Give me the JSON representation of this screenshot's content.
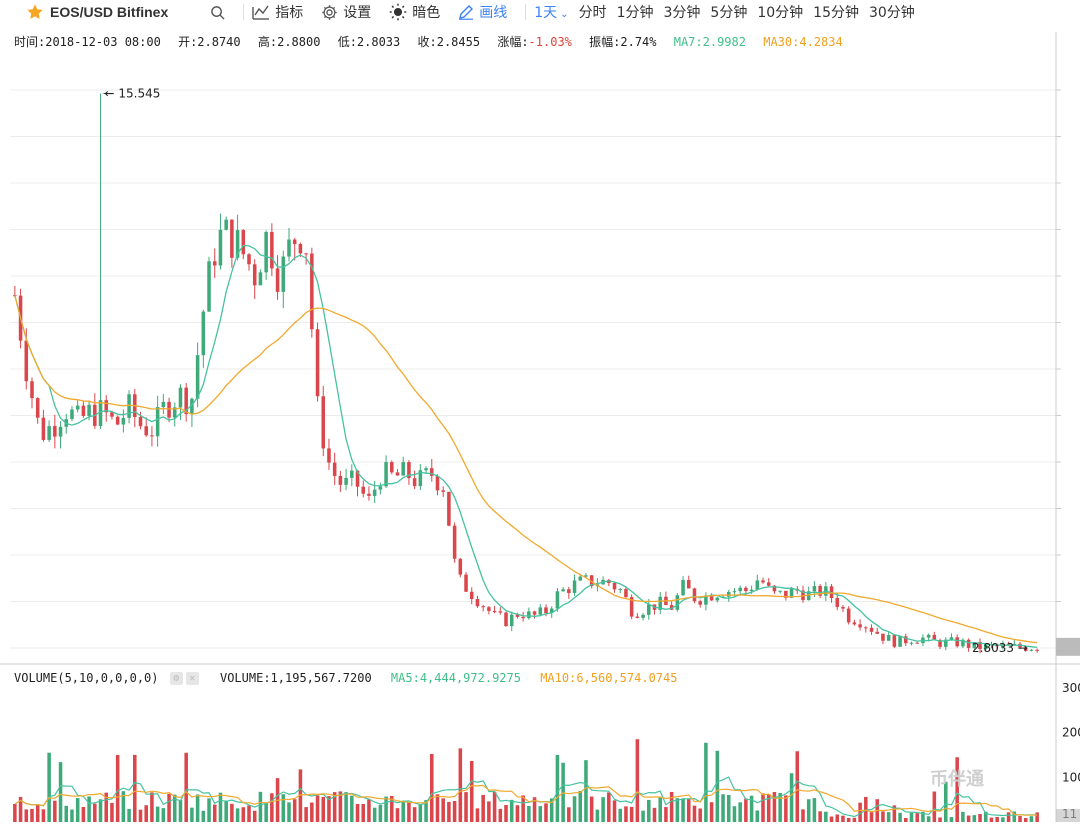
{
  "toolbar": {
    "symbol": "EOS/USD Bitfinex",
    "indicators_label": "指标",
    "settings_label": "设置",
    "dark_label": "暗色",
    "draw_label": "画线",
    "active_period": "1天",
    "periods": [
      "分时",
      "1分钟",
      "3分钟",
      "5分钟",
      "10分钟",
      "15分钟",
      "30分钟"
    ]
  },
  "info": {
    "time": "时间:2018-12-03 08:00",
    "open": "开:2.8740",
    "high": "高:2.8800",
    "low": "低:2.8033",
    "close": "收:2.8455",
    "change_label": "涨幅:",
    "change_value": "-1.03%",
    "amplitude": "振幅:2.74%",
    "ma7": "MA7:2.9982",
    "ma30": "MA30:4.2834"
  },
  "volume_info": {
    "title": "VOLUME(5,10,0,0,0,0)",
    "value": "VOLUME:1,195,567.7200",
    "ma5": "MA5:4,444,972.9275",
    "ma10": "MA10:6,560,574.0745"
  },
  "colors": {
    "up": "#3fa97a",
    "down": "#d9464b",
    "ma_short": "#45c3a0",
    "ma_long": "#f0a92e",
    "grid": "#ececec"
  },
  "watermark": "币伴通",
  "chart_data": {
    "type": "candlestick",
    "price_axis_range": [
      2.5,
      16.5
    ],
    "annotations": {
      "max": "15.545",
      "last": "2.8033"
    },
    "volume_axis_ticks": [
      "300",
      "200",
      "100",
      "11"
    ],
    "ohlc_close_series": [
      10.9,
      9.1,
      7.7,
      7.9,
      8.3,
      8.0,
      8.2,
      8.2,
      7.9,
      8.3,
      7.9,
      7.8,
      8.4,
      8.6,
      8.5,
      10.7,
      12.2,
      12.3,
      11.9,
      11.4,
      12.3,
      11.3,
      12.2,
      12.4,
      8.2,
      6.9,
      6.5,
      6.6,
      6.1,
      6.8,
      6.7,
      6.8,
      6.6,
      6.8,
      6.5,
      4.4,
      4.1,
      3.8,
      3.5,
      3.4,
      3.6,
      3.5,
      3.6,
      4.0,
      4.2,
      4.3,
      4.3,
      4.3,
      4.1,
      3.6,
      3.7,
      3.8,
      3.7,
      4.2,
      3.9,
      4.0,
      4.1,
      4.1,
      4.1,
      4.4,
      4.0,
      4.0,
      4.1,
      4.0,
      4.1,
      3.9,
      3.5,
      3.4,
      3.2,
      3.0,
      2.9,
      3.0,
      3.0,
      2.9,
      2.9,
      2.9,
      2.8,
      2.8,
      2.8,
      2.8,
      2.8,
      2.8
    ]
  }
}
